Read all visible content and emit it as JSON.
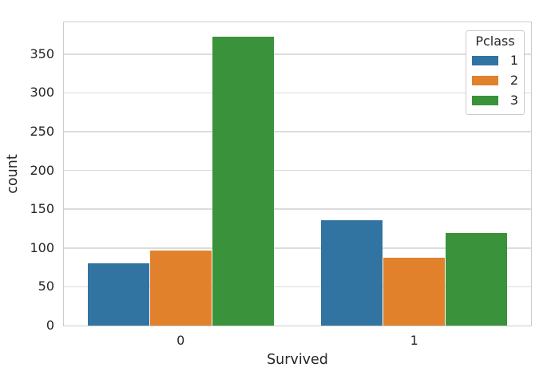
{
  "chart_data": {
    "type": "bar",
    "title": "",
    "xlabel": "Survived",
    "ylabel": "count",
    "categories": [
      "0",
      "1"
    ],
    "series": [
      {
        "name": "1",
        "color": "#3274a1",
        "values": [
          80,
          136
        ]
      },
      {
        "name": "2",
        "color": "#e1812c",
        "values": [
          97,
          87
        ]
      },
      {
        "name": "3",
        "color": "#3a923a",
        "values": [
          372,
          119
        ]
      }
    ],
    "yticks": [
      0,
      50,
      100,
      150,
      200,
      250,
      300,
      350
    ],
    "ylim": [
      0,
      391
    ],
    "grid": true,
    "legend": {
      "title": "Pclass",
      "position": "upper-right",
      "entries": [
        "1",
        "2",
        "3"
      ]
    }
  },
  "style": {
    "background": "#ffffff",
    "grid_color": "#dcdcdc",
    "spine_color": "#cccccc",
    "text_color": "#262626"
  }
}
